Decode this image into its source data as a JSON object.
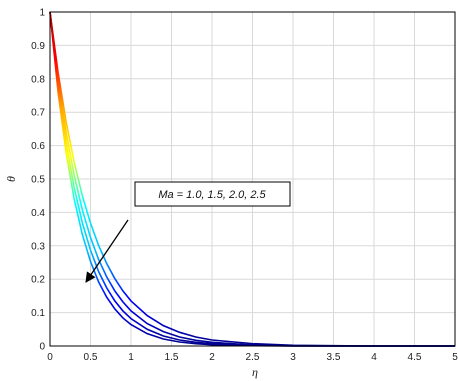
{
  "chart_data": {
    "type": "line",
    "title": "",
    "xlabel": "η",
    "ylabel": "θ",
    "xlim": [
      0,
      5
    ],
    "ylim": [
      0,
      1
    ],
    "xticks": [
      "0",
      "0.5",
      "1",
      "1.5",
      "2",
      "2.5",
      "3",
      "3.5",
      "4",
      "4.5",
      "5"
    ],
    "yticks": [
      "0",
      "0.1",
      "0.2",
      "0.3",
      "0.4",
      "0.5",
      "0.6",
      "0.7",
      "0.8",
      "0.9",
      "1"
    ],
    "grid": true,
    "colormap": [
      "#00008b",
      "#0000ff",
      "#00bfff",
      "#00ffff",
      "#ffff00",
      "#ffa500",
      "#ff0000",
      "#b00000"
    ],
    "annotation": {
      "text": "Ma = 1.0, 1.5, 2.0, 2.5",
      "arrow": "points toward decreasing θ"
    },
    "x": [
      0,
      0.1,
      0.2,
      0.3,
      0.4,
      0.5,
      0.6,
      0.7,
      0.8,
      0.9,
      1.0,
      1.2,
      1.4,
      1.6,
      1.8,
      2.0,
      2.5,
      3.0,
      3.5,
      4.0,
      4.5,
      5.0
    ],
    "series": [
      {
        "values": [
          1.0,
          0.818,
          0.67,
          0.549,
          0.449,
          0.368,
          0.301,
          0.247,
          0.202,
          0.165,
          0.135,
          0.091,
          0.061,
          0.041,
          0.027,
          0.018,
          0.007,
          0.002,
          0.001,
          0.0,
          0.0,
          0.0
        ]
      },
      {
        "values": [
          1.0,
          0.798,
          0.638,
          0.509,
          0.407,
          0.325,
          0.259,
          0.207,
          0.165,
          0.132,
          0.105,
          0.067,
          0.043,
          0.027,
          0.017,
          0.011,
          0.003,
          0.001,
          0.0,
          0.0,
          0.0,
          0.0
        ]
      },
      {
        "values": [
          1.0,
          0.779,
          0.607,
          0.472,
          0.368,
          0.287,
          0.223,
          0.174,
          0.135,
          0.105,
          0.082,
          0.05,
          0.03,
          0.018,
          0.011,
          0.007,
          0.002,
          0.0,
          0.0,
          0.0,
          0.0,
          0.0
        ]
      },
      {
        "values": [
          1.0,
          0.76,
          0.577,
          0.438,
          0.333,
          0.253,
          0.192,
          0.146,
          0.111,
          0.084,
          0.064,
          0.037,
          0.021,
          0.012,
          0.007,
          0.004,
          0.001,
          0.0,
          0.0,
          0.0,
          0.0,
          0.0
        ]
      }
    ]
  }
}
